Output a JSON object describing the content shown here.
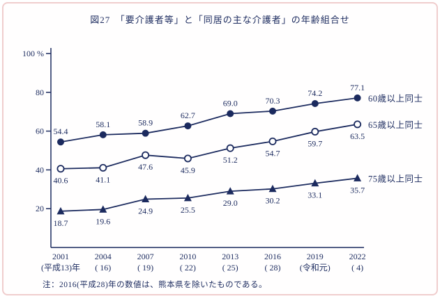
{
  "chart_data": {
    "type": "line",
    "title": "図27　「要介護者等」と「同居の主な介護者」の年齢組合せ",
    "note": "注：2016(平成28)年の数値は、熊本県を除いたものである。",
    "color": "#1b2a5e",
    "ylim": [
      0,
      100
    ],
    "yticks": [
      100,
      80,
      60,
      40,
      20
    ],
    "ytick_labels": [
      "100 %",
      "80",
      "60",
      "40",
      "20"
    ],
    "x_categories": [
      {
        "year": "2001",
        "era": "(平成13)年"
      },
      {
        "year": "2004",
        "era": "(  16)"
      },
      {
        "year": "2007",
        "era": "(  19)"
      },
      {
        "year": "2010",
        "era": "(  22)"
      },
      {
        "year": "2013",
        "era": "(  25)"
      },
      {
        "year": "2016",
        "era": "(  28)"
      },
      {
        "year": "2019",
        "era": "(令和元)"
      },
      {
        "year": "2022",
        "era": "(  4)"
      }
    ],
    "series": [
      {
        "name": "60歳以上同士",
        "marker": "filled-circle",
        "values": [
          54.4,
          58.1,
          58.9,
          62.7,
          69.0,
          70.3,
          74.2,
          77.1
        ],
        "label_position": "above"
      },
      {
        "name": "65歳以上同士",
        "marker": "open-circle",
        "values": [
          40.6,
          41.1,
          47.6,
          45.9,
          51.2,
          54.7,
          59.7,
          63.5
        ],
        "label_position": "below"
      },
      {
        "name": "75歳以上同士",
        "marker": "filled-triangle",
        "values": [
          18.7,
          19.6,
          24.9,
          25.5,
          29.0,
          30.2,
          33.1,
          35.7
        ],
        "label_position": "below"
      }
    ]
  }
}
